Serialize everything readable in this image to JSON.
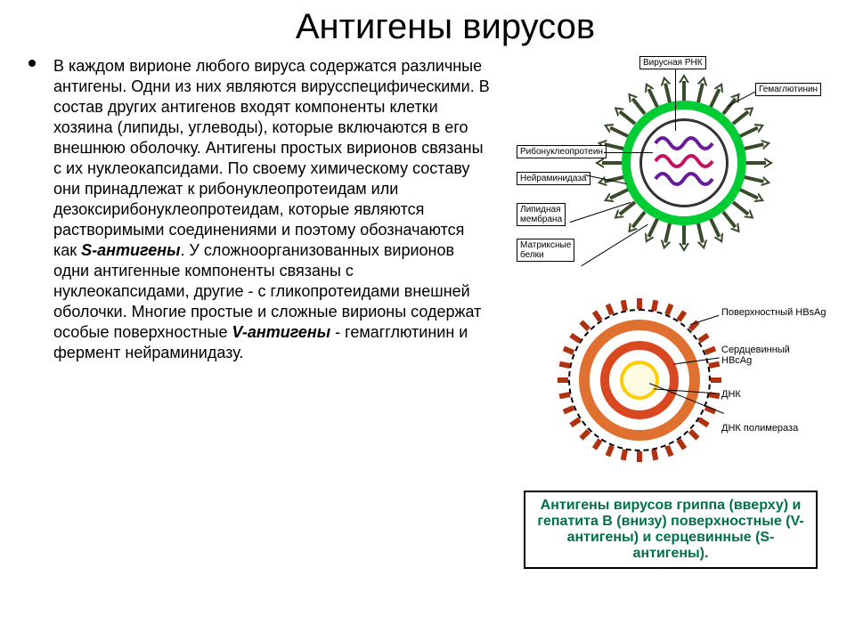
{
  "title": {
    "text": "Антигены вирусов",
    "fontsize": 40
  },
  "body": {
    "fontsize": 18,
    "lineheight": 1.28,
    "html": "В каждом вирионе любого вируса содержатся различные антигены. Одни из них являются вирусспецифическими. В состав других антигенов входят компоненты клетки хозяина (липиды, углеводы), которые включаются в его внешнюю оболочку.  Антигены простых вирионов связаны с их нуклеокапсидами. По своему химическому составу они принадлежат к рибонуклеопротеидам или дезоксирибонуклеопротеидам, которые являются растворимыми соединениями и поэтому обозначаются как <b><i>S-антигены</i></b>. У сложноорганизованных вирионов одни антигенные компоненты связаны с нуклеокапсидами, другие - с гликопротеидами внешней оболочки. Многие простые и сложные вирионы содержат особые поверхностные <b><i>V-антигены</i></b> - гемагглютинин и фермент нейраминидазу."
  },
  "flu": {
    "labels": {
      "rnp": "Рибонуклеопротеин",
      "na": "Нейраминидаза",
      "lipid": "Липидная\nмембрана",
      "matrix": "Матриксные\nбелки",
      "rna": "Вирусная РНК",
      "ha": "Гемаглютинин"
    },
    "colors": {
      "envelope": "#00cc33",
      "spike": "#3a4a2a",
      "rna1": "#6a1b9a",
      "rna2": "#c51162"
    }
  },
  "hbv": {
    "labels": {
      "hbs": "Поверхностный HBsAg",
      "hbc": "Сердцевинный\nHBcAg",
      "dna": "ДНК",
      "pol": "ДНК полимераза"
    },
    "colors": {
      "env": "#e07030",
      "core": "#d94820",
      "dna_ring": "#ffcc00",
      "spike": "#b03010"
    }
  },
  "caption": {
    "text": "Антигены вирусов гриппа (вверху) и гепатита В (внизу) поверхностные (V-антигены) и серцевинные (S-антигены).",
    "fontsize": 16,
    "color": "#00704a"
  }
}
